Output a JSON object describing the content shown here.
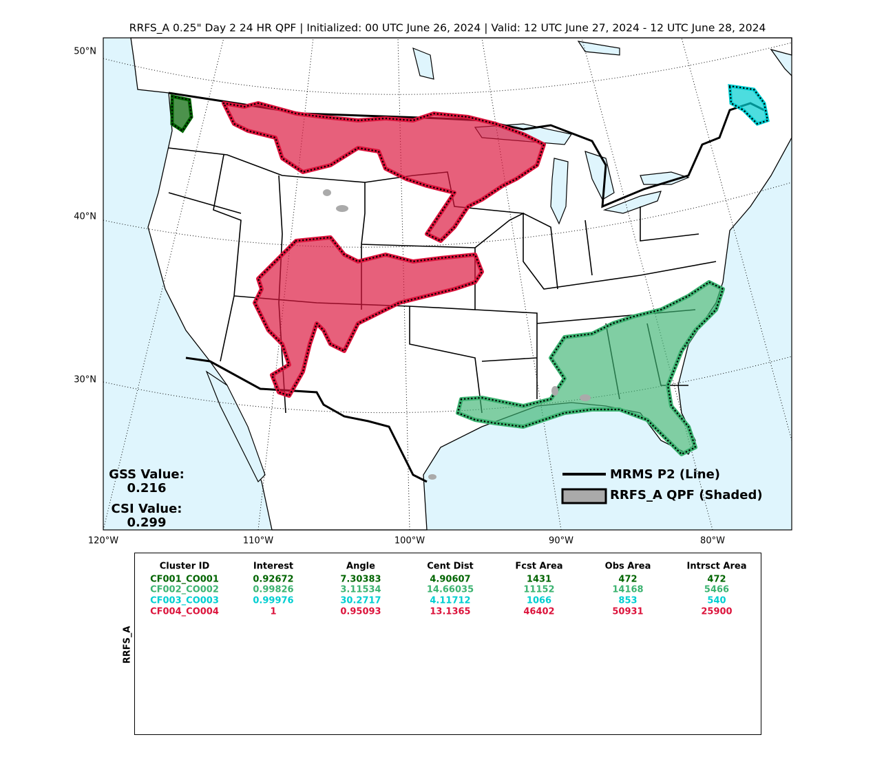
{
  "title": "RRFS_A 0.25\" Day 2 24 HR QPF | Initialized: 00 UTC June 26, 2024 | Valid: 12 UTC June 27, 2024 - 12 UTC June 28, 2024",
  "map": {
    "lat_labels": [
      "50°N",
      "40°N",
      "30°N"
    ],
    "lon_labels": [
      "120°W",
      "110°W",
      "100°W",
      "90°W",
      "80°W"
    ]
  },
  "scores": [
    {
      "label": "GSS Value:",
      "value": 0.216
    },
    {
      "label": "CSI Value:",
      "value": 0.299
    }
  ],
  "legend": [
    {
      "label": "MRMS P2 (Line)"
    },
    {
      "label": "RRFS_A QPF (Shaded)"
    }
  ],
  "table": {
    "side_label": "RRFS_A",
    "columns": [
      "Cluster ID",
      "Interest",
      "Angle",
      "Cent Dist",
      "Fcst Area",
      "Obs Area",
      "Intrsct Area"
    ],
    "rows": [
      {
        "color": "#006400",
        "cells": [
          "CF001_CO001",
          0.92672,
          7.30383,
          4.90607,
          1431,
          472,
          472
        ]
      },
      {
        "color": "#3cb371",
        "cells": [
          "CF002_CO002",
          0.99826,
          3.11534,
          14.66035,
          11152,
          14168,
          5466
        ]
      },
      {
        "color": "#00ced1",
        "cells": [
          "CF003_CO003",
          0.99976,
          30.2717,
          4.11712,
          1066,
          853,
          540
        ]
      },
      {
        "color": "#dc143c",
        "cells": [
          "CF004_CO004",
          1,
          0.95093,
          13.1365,
          46402,
          50931,
          25900
        ]
      }
    ]
  }
}
